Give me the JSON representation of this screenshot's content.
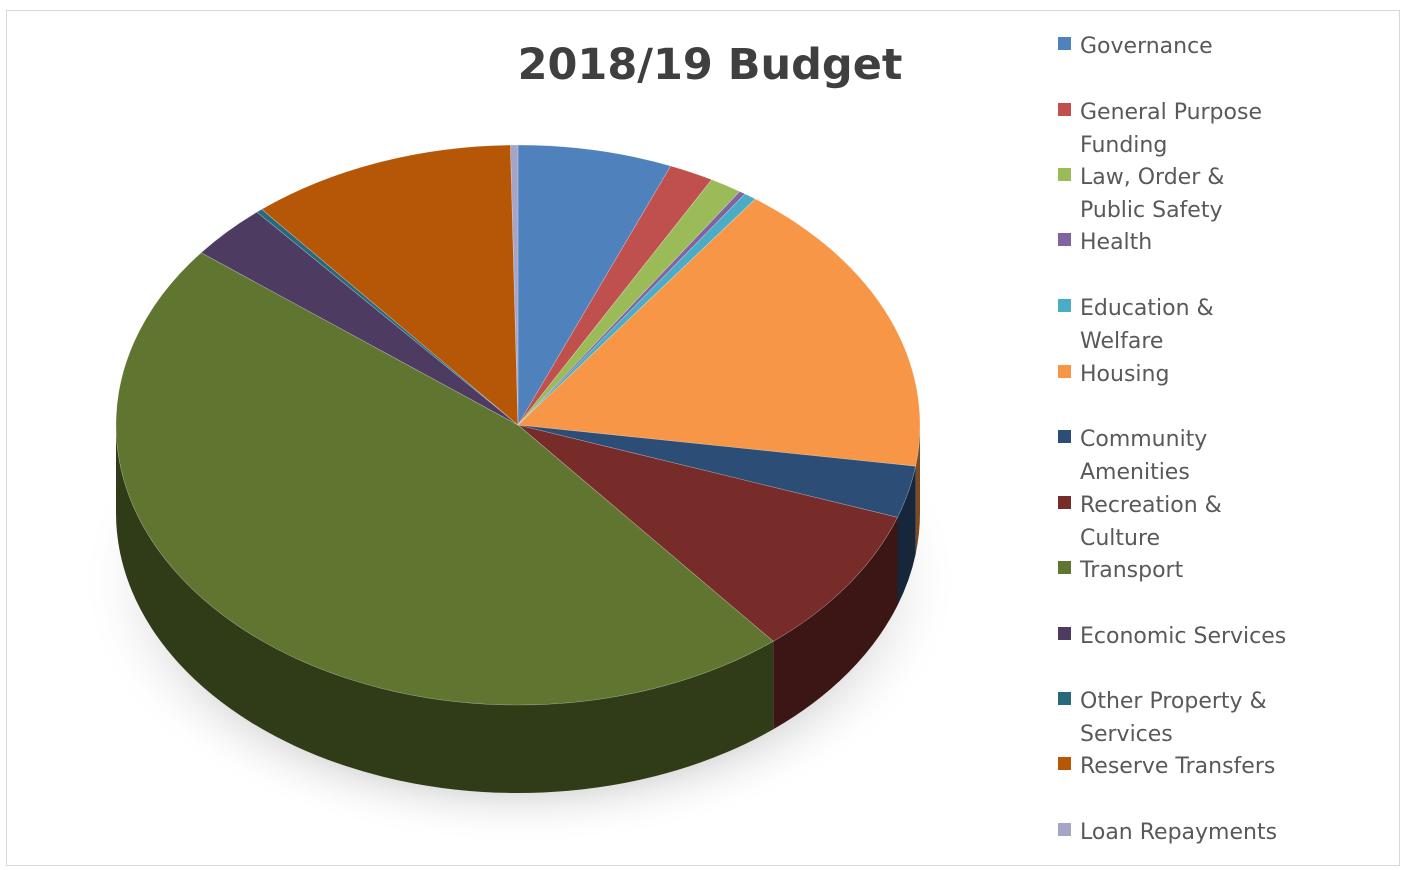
{
  "chart_data": {
    "type": "pie",
    "title": "2018/19 Budget",
    "legend_position": "right",
    "style": "3d",
    "slices": [
      {
        "label": "Governance",
        "value": 6.2,
        "color": "#4f81bd"
      },
      {
        "label": "General Purpose Funding",
        "value": 1.8,
        "color": "#c0504d"
      },
      {
        "label": "Law, Order & Public Safety",
        "value": 1.3,
        "color": "#9bbb59"
      },
      {
        "label": "Health",
        "value": 0.25,
        "color": "#8064a2"
      },
      {
        "label": "Education & Welfare",
        "value": 0.5,
        "color": "#4bacc6"
      },
      {
        "label": "Housing",
        "value": 17.3,
        "color": "#f79646"
      },
      {
        "label": "Community Amenities",
        "value": 3.0,
        "color": "#2c4d75"
      },
      {
        "label": "Recreation & Culture",
        "value": 8.7,
        "color": "#772c2a"
      },
      {
        "label": "Transport",
        "value": 46.5,
        "color": "#5f7530"
      },
      {
        "label": "Economic Services",
        "value": 3.2,
        "color": "#4d3b62"
      },
      {
        "label": "Other Property & Services",
        "value": 0.25,
        "color": "#276a7c"
      },
      {
        "label": "Reserve Transfers",
        "value": 10.7,
        "color": "#b65708"
      },
      {
        "label": "Loan Repayments",
        "value": 0.3,
        "color": "#a5a5c9"
      }
    ]
  }
}
